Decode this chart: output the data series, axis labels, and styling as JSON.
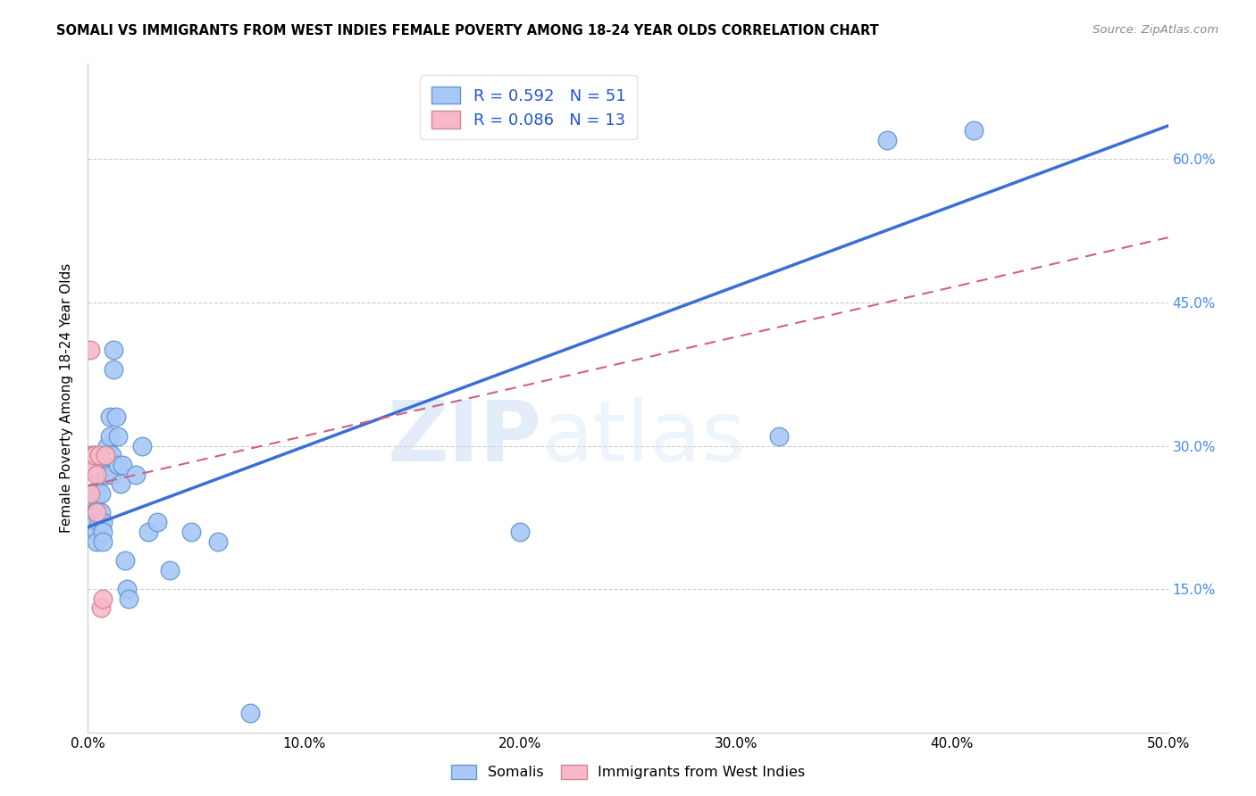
{
  "title": "SOMALI VS IMMIGRANTS FROM WEST INDIES FEMALE POVERTY AMONG 18-24 YEAR OLDS CORRELATION CHART",
  "source": "Source: ZipAtlas.com",
  "ylabel": "Female Poverty Among 18-24 Year Olds",
  "watermark_zip": "ZIP",
  "watermark_atlas": "atlas",
  "xmin": 0.0,
  "xmax": 0.5,
  "ymin": 0.0,
  "ymax": 0.7,
  "yticks": [
    0.0,
    0.15,
    0.3,
    0.45,
    0.6
  ],
  "xticks": [
    0.0,
    0.1,
    0.2,
    0.3,
    0.4,
    0.5
  ],
  "somali_R": 0.592,
  "somali_N": 51,
  "west_indies_R": 0.086,
  "west_indies_N": 13,
  "somali_color": "#a8c8f8",
  "somali_edge_color": "#6699cc",
  "west_indies_color": "#f8b8c8",
  "west_indies_edge_color": "#cc8899",
  "somali_line_color": "#3a6fd8",
  "west_indies_line_color": "#d06080",
  "right_axis_color": "#4488ee",
  "legend_color": "#2255cc",
  "somali_x": [
    0.001,
    0.001,
    0.002,
    0.002,
    0.002,
    0.003,
    0.003,
    0.003,
    0.004,
    0.004,
    0.004,
    0.004,
    0.005,
    0.005,
    0.005,
    0.006,
    0.006,
    0.006,
    0.007,
    0.007,
    0.007,
    0.008,
    0.008,
    0.009,
    0.009,
    0.01,
    0.01,
    0.011,
    0.011,
    0.012,
    0.012,
    0.013,
    0.014,
    0.014,
    0.015,
    0.016,
    0.017,
    0.018,
    0.019,
    0.022,
    0.025,
    0.028,
    0.032,
    0.038,
    0.048,
    0.06,
    0.075,
    0.2,
    0.32,
    0.37,
    0.41
  ],
  "somali_y": [
    0.25,
    0.24,
    0.25,
    0.24,
    0.23,
    0.24,
    0.23,
    0.22,
    0.25,
    0.23,
    0.21,
    0.2,
    0.28,
    0.27,
    0.22,
    0.27,
    0.25,
    0.23,
    0.22,
    0.21,
    0.2,
    0.29,
    0.27,
    0.3,
    0.27,
    0.33,
    0.31,
    0.29,
    0.27,
    0.4,
    0.38,
    0.33,
    0.31,
    0.28,
    0.26,
    0.28,
    0.18,
    0.15,
    0.14,
    0.27,
    0.3,
    0.21,
    0.22,
    0.17,
    0.21,
    0.2,
    0.02,
    0.21,
    0.31,
    0.62,
    0.63
  ],
  "west_indies_x": [
    0.001,
    0.001,
    0.001,
    0.002,
    0.002,
    0.003,
    0.003,
    0.004,
    0.004,
    0.005,
    0.006,
    0.007,
    0.008
  ],
  "west_indies_y": [
    0.4,
    0.29,
    0.25,
    0.29,
    0.28,
    0.29,
    0.29,
    0.27,
    0.23,
    0.29,
    0.13,
    0.14,
    0.29
  ],
  "somali_line_x0": 0.0,
  "somali_line_y0": 0.215,
  "somali_line_x1": 0.5,
  "somali_line_y1": 0.635,
  "west_line_x0": 0.0,
  "west_line_y0": 0.258,
  "west_line_x1": 0.5,
  "west_line_y1": 0.518
}
